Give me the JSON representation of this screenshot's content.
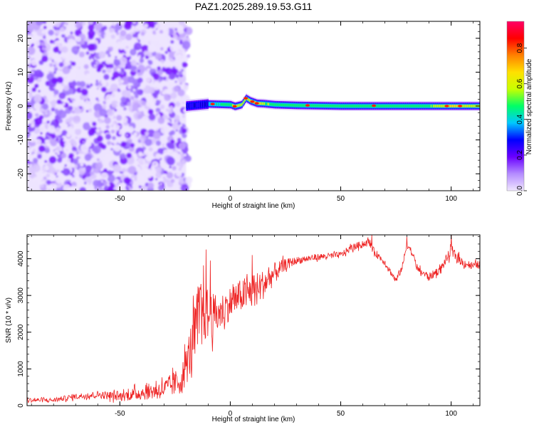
{
  "title": "PAZ1.2025.289.19.53.G11",
  "chart_data": [
    {
      "type": "heatmap",
      "xlabel": "Height of straight line (km)",
      "ylabel": "Frequency (Hz)",
      "xlim": [
        -92,
        113
      ],
      "ylim": [
        -25,
        25
      ],
      "xticks": [
        "-50",
        "0",
        "50",
        "100"
      ],
      "xtick_values": [
        -50,
        0,
        50,
        100
      ],
      "yticks": [
        "-20",
        "-10",
        "0",
        "10",
        "20"
      ],
      "ytick_values": [
        -20,
        -10,
        0,
        10,
        20
      ],
      "colorbar": {
        "label": "Normalized spectral amplitude",
        "range": [
          0,
          0.95
        ],
        "ticks": [
          "0.0",
          "0.2",
          "0.4",
          "0.6",
          "0.8"
        ],
        "tick_values": [
          0.0,
          0.2,
          0.4,
          0.6,
          0.8
        ],
        "colors": [
          "#f0e6ff",
          "#b48cff",
          "#6a00ff",
          "#0000ff",
          "#00c8ff",
          "#00ff66",
          "#c8ff00",
          "#ffe000",
          "#ff8000",
          "#ff0000",
          "#ff0066"
        ]
      },
      "noise_region_x": [
        -92,
        -20
      ],
      "noise_color_levels": [
        "#ede4ff",
        "#d9c6ff",
        "#c2a4ff",
        "#a37cff",
        "#8a4dff",
        "#7a1aff"
      ],
      "signal_track": {
        "x": [
          -20,
          -15,
          -10,
          -5,
          0,
          2,
          5,
          7,
          9,
          12,
          15,
          20,
          30,
          40,
          50,
          60,
          70,
          80,
          90,
          100,
          113
        ],
        "freq_hz": [
          0,
          0.3,
          0.6,
          0.5,
          0.4,
          -0.1,
          0.4,
          2.3,
          1.5,
          0.8,
          0.7,
          0.4,
          0.2,
          0.1,
          0.0,
          0.0,
          0.0,
          0.0,
          0.0,
          0.0,
          0.0
        ],
        "peak_amplitude": [
          0.2,
          0.3,
          0.45,
          0.55,
          0.65,
          0.85,
          0.7,
          0.75,
          0.8,
          0.9,
          0.7,
          0.6,
          0.6,
          0.62,
          0.6,
          0.6,
          0.6,
          0.62,
          0.62,
          0.85,
          0.7
        ]
      }
    },
    {
      "type": "line",
      "xlabel": "Height of straight line (km)",
      "ylabel": "SNR (10 * v/v)",
      "xlim": [
        -92,
        113
      ],
      "ylim": [
        0,
        4650
      ],
      "xticks": [
        "-50",
        "0",
        "50",
        "100"
      ],
      "xtick_values": [
        -50,
        0,
        50,
        100
      ],
      "yticks": [
        "0",
        "1000",
        "2000",
        "3000",
        "4000"
      ],
      "ytick_values": [
        0,
        1000,
        2000,
        3000,
        4000
      ],
      "series": [
        {
          "name": "SNR",
          "color": "#ee2222",
          "x": [
            -92,
            -80,
            -70,
            -60,
            -50,
            -40,
            -30,
            -22,
            -18,
            -15,
            -12,
            -10,
            -5,
            0,
            5,
            10,
            15,
            20,
            25,
            30,
            40,
            50,
            55,
            60,
            63,
            65,
            70,
            73,
            75,
            78,
            80,
            82,
            85,
            90,
            95,
            100,
            105,
            110,
            113
          ],
          "y": [
            150,
            150,
            250,
            300,
            250,
            350,
            450,
            700,
            1500,
            2300,
            2800,
            2400,
            2500,
            2800,
            3000,
            3100,
            3300,
            3600,
            3850,
            3950,
            4050,
            4100,
            4300,
            4400,
            4450,
            4200,
            3900,
            3600,
            3400,
            3800,
            4400,
            4200,
            3700,
            3500,
            3700,
            4200,
            3900,
            3800,
            3850
          ],
          "noise_amplitude": [
            60,
            60,
            80,
            100,
            130,
            200,
            260,
            400,
            700,
            900,
            1100,
            700,
            500,
            450,
            450,
            500,
            400,
            300,
            150,
            100,
            90,
            90,
            100,
            100,
            110,
            100,
            90,
            90,
            100,
            100,
            110,
            100,
            100,
            110,
            110,
            150,
            120,
            110,
            110
          ],
          "spikes": [
            {
              "x": -11,
              "y": 4250
            },
            {
              "x": -9,
              "y": 3950
            },
            {
              "x": 10,
              "y": 4100
            },
            {
              "x": 64,
              "y": 4650
            },
            {
              "x": 80,
              "y": 4600
            },
            {
              "x": 100,
              "y": 4650
            }
          ]
        }
      ]
    }
  ]
}
